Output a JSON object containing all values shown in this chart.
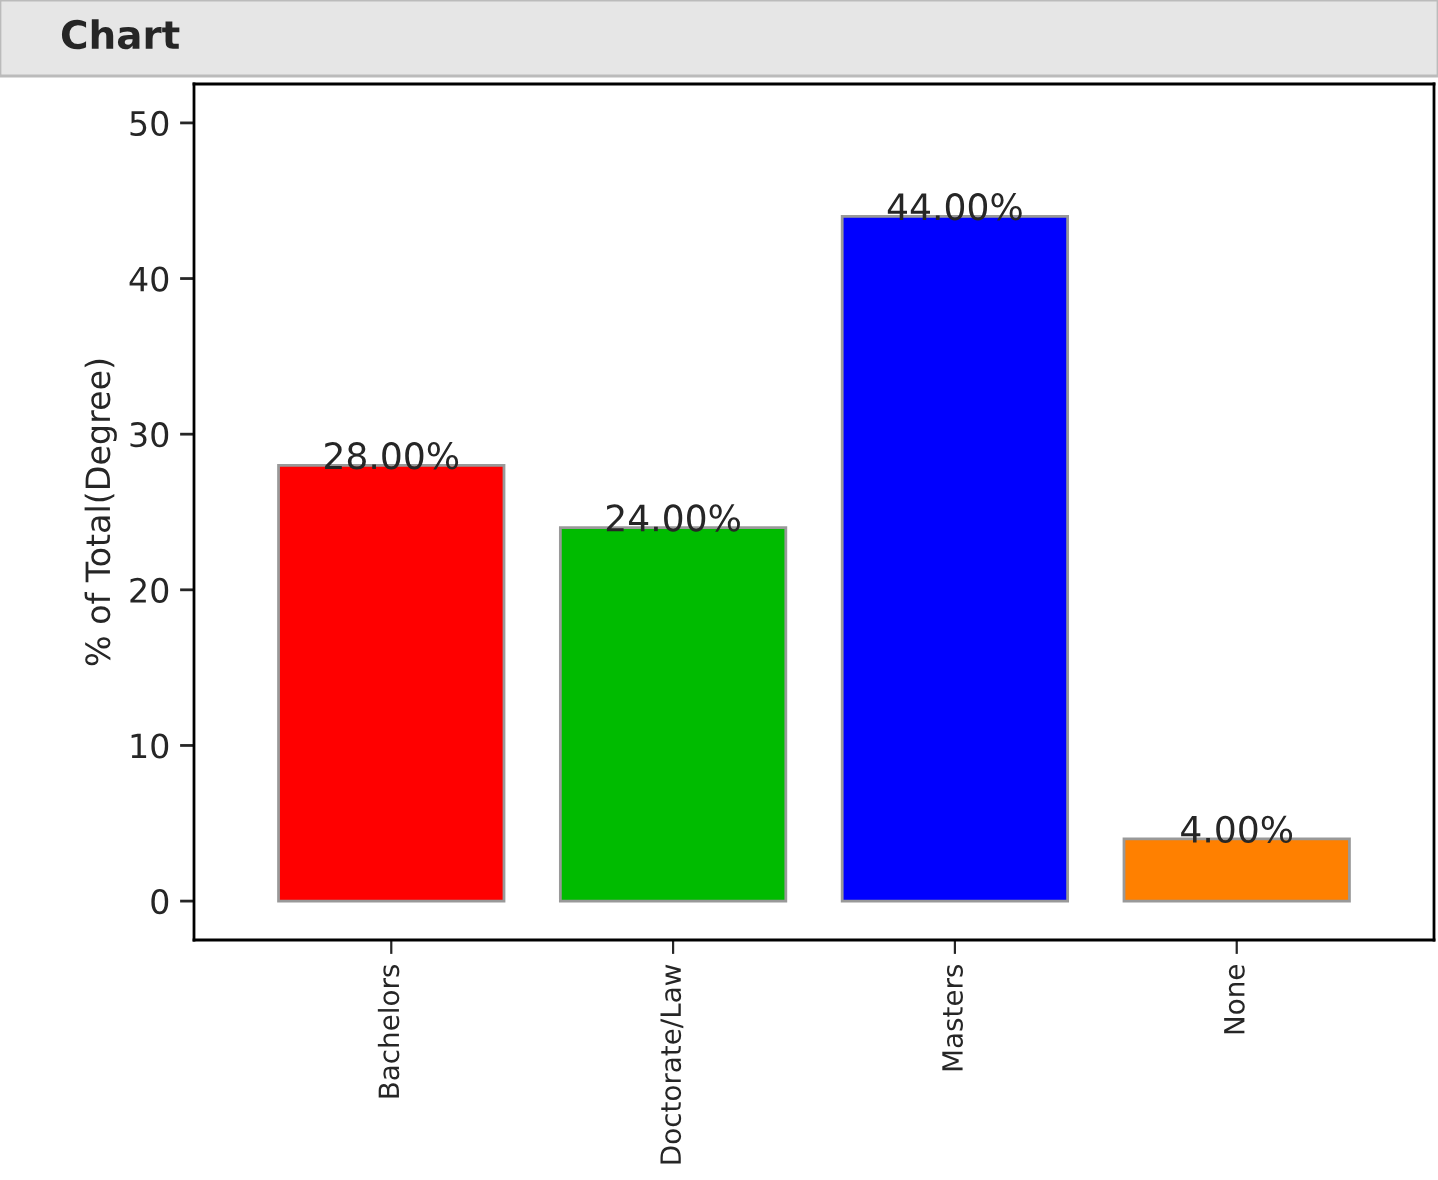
{
  "chart_data": {
    "type": "bar",
    "title": "Chart",
    "ylabel": "% of Total(Degree)",
    "categories": [
      "Bachelors",
      "Doctorate/Law",
      "Masters",
      "None"
    ],
    "values": [
      28,
      24,
      44,
      4
    ],
    "colors": [
      "#ff0000",
      "#00bb00",
      "#0000ff",
      "#ff8000"
    ],
    "value_labels": [
      "28.00%",
      "24.00%",
      "44.00%",
      "4.00%"
    ],
    "ylim": [
      -2.5,
      52.5
    ],
    "yticks": [
      0,
      10,
      20,
      30,
      40,
      50
    ],
    "grid": false
  }
}
